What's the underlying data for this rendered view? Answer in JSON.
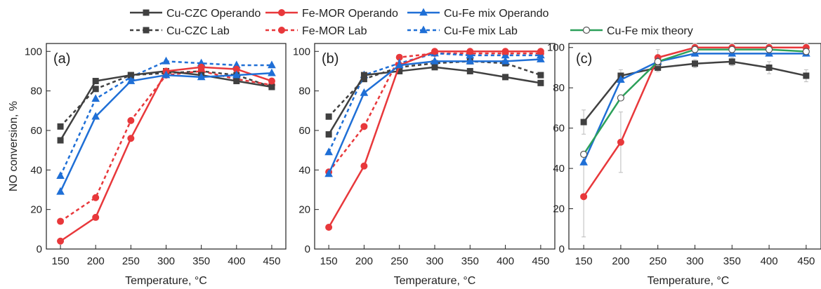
{
  "legend": [
    {
      "label": "Cu-CZC Operando",
      "color": "#404040",
      "marker": "square",
      "dash": false,
      "fill": true
    },
    {
      "label": "Fe-MOR Operando",
      "color": "#e8383b",
      "marker": "circle",
      "dash": false,
      "fill": true
    },
    {
      "label": "Cu-Fe mix Operando",
      "color": "#1f6fd6",
      "marker": "triangle",
      "dash": false,
      "fill": true
    },
    {
      "label": "Cu-CZC Lab",
      "color": "#404040",
      "marker": "square",
      "dash": true,
      "fill": true
    },
    {
      "label": "Fe-MOR Lab",
      "color": "#e8383b",
      "marker": "circle",
      "dash": true,
      "fill": true
    },
    {
      "label": "Cu-Fe mix Lab",
      "color": "#1f6fd6",
      "marker": "triangle",
      "dash": true,
      "fill": true
    },
    {
      "label": "Cu-Fe mix theory",
      "color": "#2ca05a",
      "marker": "circle",
      "dash": false,
      "fill": false
    }
  ],
  "chart_data": [
    {
      "type": "line",
      "panel_label": "(a)",
      "xlabel": "Temperature, °C",
      "ylabel": "NO conversion, %",
      "x": [
        150,
        200,
        250,
        300,
        350,
        400,
        450
      ],
      "xlim": [
        130,
        470
      ],
      "ylim": [
        0,
        104
      ],
      "yticks": [
        0,
        20,
        40,
        60,
        80,
        100
      ],
      "series": [
        {
          "name": "Cu-CZC Lab",
          "values": [
            62,
            81,
            88,
            89,
            90,
            88,
            82
          ]
        },
        {
          "name": "Fe-MOR Lab",
          "values": [
            14,
            26,
            65,
            88,
            90,
            86,
            83
          ]
        },
        {
          "name": "Cu-Fe mix Lab",
          "values": [
            37,
            76,
            87,
            95,
            94,
            93,
            93
          ]
        },
        {
          "name": "Cu-CZC Operando",
          "values": [
            55,
            85,
            88,
            90,
            88,
            85,
            82
          ]
        },
        {
          "name": "Fe-MOR Operando",
          "values": [
            4,
            16,
            56,
            90,
            92,
            91,
            85
          ]
        },
        {
          "name": "Cu-Fe mix Operando",
          "values": [
            29,
            67,
            85,
            88,
            87,
            88,
            89
          ]
        }
      ]
    },
    {
      "type": "line",
      "panel_label": "(b)",
      "xlabel": "Temperature, °C",
      "ylabel": "",
      "x": [
        150,
        200,
        250,
        300,
        350,
        400,
        450
      ],
      "xlim": [
        130,
        470
      ],
      "ylim": [
        0,
        104
      ],
      "yticks": [
        0,
        20,
        40,
        60,
        80,
        100
      ],
      "series": [
        {
          "name": "Cu-CZC Lab",
          "values": [
            67,
            86,
            92,
            94,
            95,
            94,
            88
          ]
        },
        {
          "name": "Fe-MOR Lab",
          "values": [
            39,
            62,
            97,
            99,
            99,
            99,
            99
          ]
        },
        {
          "name": "Cu-Fe mix Lab",
          "values": [
            49,
            88,
            94,
            99,
            98,
            98,
            98
          ]
        },
        {
          "name": "Cu-CZC Operando",
          "values": [
            58,
            88,
            90,
            92,
            90,
            87,
            84
          ]
        },
        {
          "name": "Fe-MOR Operando",
          "values": [
            11,
            42,
            93,
            100,
            100,
            100,
            100
          ]
        },
        {
          "name": "Cu-Fe mix Operando",
          "values": [
            38,
            79,
            93,
            95,
            95,
            95,
            96
          ]
        }
      ]
    },
    {
      "type": "line",
      "panel_label": "(c)",
      "xlabel": "Temperature, °C",
      "ylabel": "",
      "x": [
        150,
        200,
        250,
        300,
        350,
        400,
        450
      ],
      "xlim": [
        130,
        470
      ],
      "ylim": [
        0,
        102
      ],
      "yticks": [
        0,
        20,
        40,
        60,
        80,
        100
      ],
      "series": [
        {
          "name": "Cu-CZC Operando",
          "values": [
            63,
            86,
            90,
            92,
            93,
            90,
            86
          ],
          "errors": [
            6,
            3,
            2,
            2,
            2,
            3,
            3
          ]
        },
        {
          "name": "Fe-MOR Operando",
          "values": [
            26,
            53,
            95,
            100,
            100,
            100,
            100
          ],
          "errors": [
            20,
            15,
            4,
            2,
            2,
            2,
            2
          ]
        },
        {
          "name": "Cu-Fe mix Operando",
          "values": [
            43,
            84,
            93,
            97,
            97,
            97,
            97
          ],
          "errors": [
            0,
            0,
            0,
            0,
            0,
            0,
            0
          ]
        },
        {
          "name": "Cu-Fe mix theory",
          "values": [
            47,
            75,
            93,
            99,
            99,
            99,
            98
          ],
          "errors": [
            0,
            0,
            0,
            0,
            0,
            0,
            0
          ]
        }
      ]
    }
  ]
}
